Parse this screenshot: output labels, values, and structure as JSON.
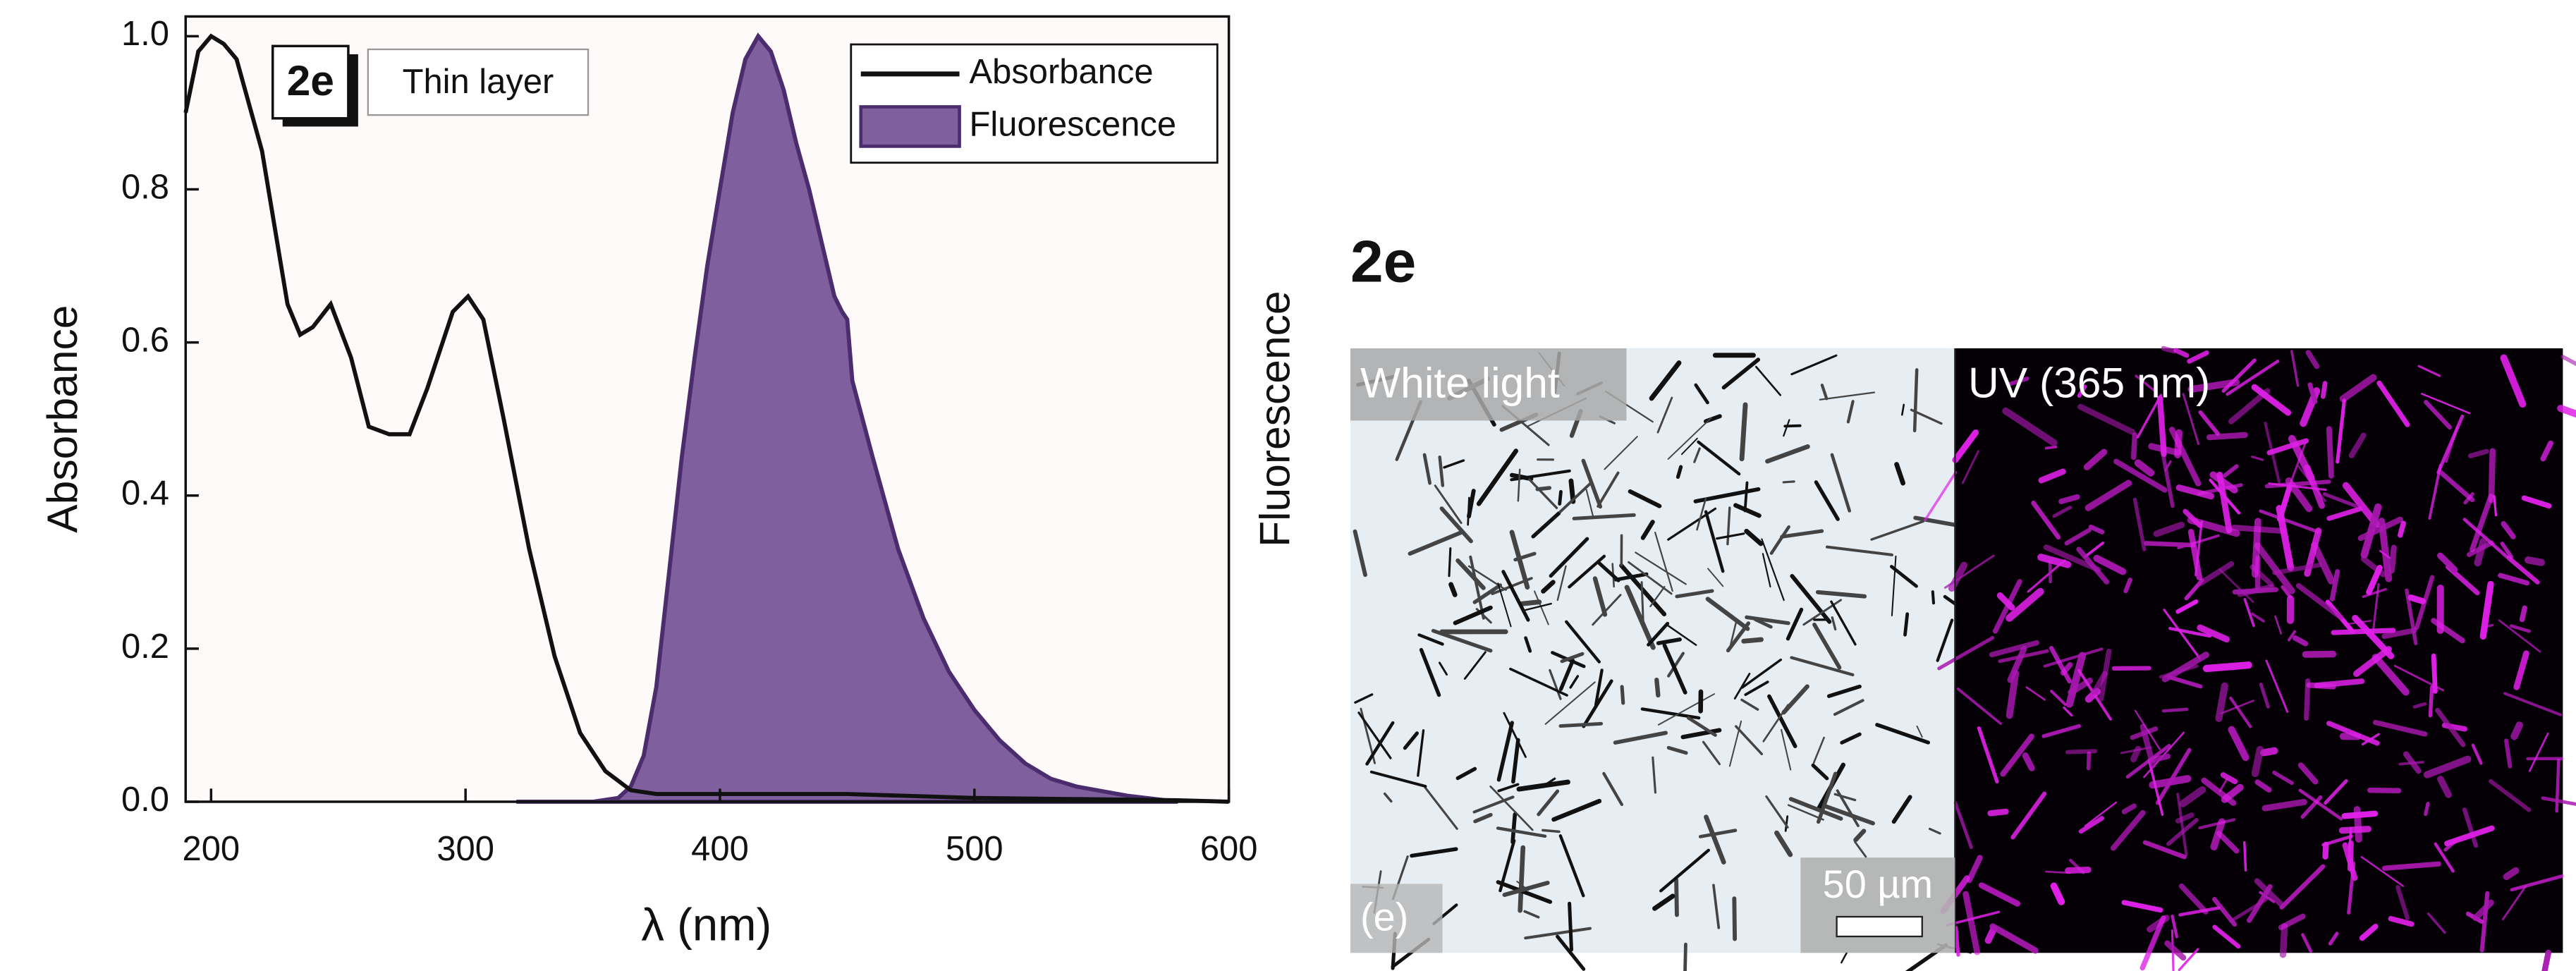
{
  "chart_data": {
    "type": "line",
    "sample_label": "2e",
    "annotation": "Thin layer",
    "x_label": "λ (nm)",
    "y_label": "Absorbance",
    "y2_label": "Fluorescence",
    "xlim": [
      190,
      600
    ],
    "xticks": [
      200,
      300,
      400,
      500,
      600
    ],
    "ylim": [
      0,
      1
    ],
    "yticks": [
      {
        "value": 0,
        "label": "0.0"
      },
      0.2,
      0.4,
      0.6,
      0.8,
      {
        "value": 1,
        "label": "1.0"
      }
    ],
    "legend": "upper right",
    "series": [
      {
        "name": "Absorbance",
        "style": "line",
        "color": "#111111",
        "x": [
          190,
          195,
          200,
          205,
          210,
          220,
          230,
          235,
          240,
          247,
          255,
          262,
          270,
          278,
          285,
          295,
          301,
          307,
          315,
          325,
          335,
          345,
          355,
          365,
          375,
          400,
          450,
          500,
          580,
          600
        ],
        "values": [
          0.9,
          0.98,
          1.0,
          0.99,
          0.97,
          0.85,
          0.65,
          0.61,
          0.62,
          0.65,
          0.58,
          0.49,
          0.48,
          0.48,
          0.54,
          0.64,
          0.66,
          0.63,
          0.5,
          0.33,
          0.19,
          0.09,
          0.04,
          0.015,
          0.01,
          0.01,
          0.01,
          0.005,
          0.002,
          0
        ]
      },
      {
        "name": "Fluorescence",
        "style": "area",
        "color": "#7f5f9e",
        "edge_color": "#4b2d6e",
        "x": [
          320,
          350,
          360,
          365,
          370,
          375,
          380,
          385,
          390,
          395,
          400,
          405,
          410,
          415,
          420,
          425,
          430,
          435,
          440,
          445,
          448,
          450,
          452,
          460,
          470,
          480,
          490,
          500,
          510,
          520,
          530,
          540,
          560,
          580
        ],
        "values": [
          0,
          0,
          0.005,
          0.02,
          0.06,
          0.15,
          0.3,
          0.45,
          0.58,
          0.7,
          0.8,
          0.9,
          0.97,
          1.0,
          0.98,
          0.93,
          0.86,
          0.8,
          0.73,
          0.66,
          0.64,
          0.63,
          0.55,
          0.45,
          0.33,
          0.24,
          0.17,
          0.12,
          0.08,
          0.05,
          0.03,
          0.02,
          0.008,
          0
        ]
      }
    ]
  },
  "micrograph": {
    "title": "2e",
    "panel_letter": "(e)",
    "scale_bar": "50 µm",
    "panels": [
      {
        "label": "White light"
      },
      {
        "label": "UV (365 nm)"
      }
    ]
  }
}
